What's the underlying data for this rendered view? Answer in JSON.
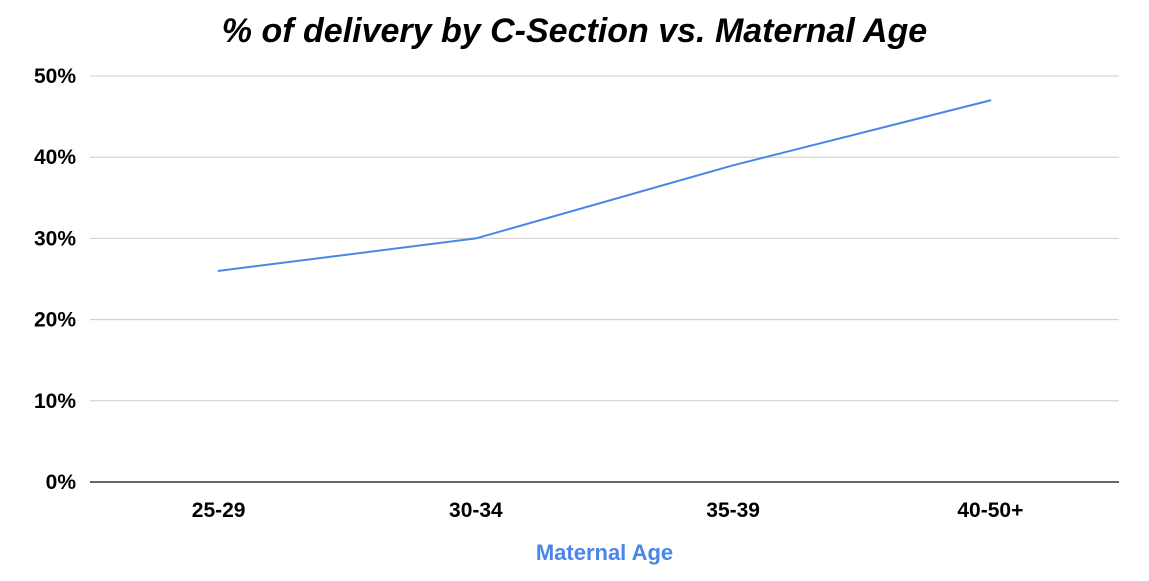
{
  "chart_data": {
    "type": "line",
    "title": "% of delivery by C-Section vs. Maternal Age",
    "xlabel": "Maternal Age",
    "ylabel": "",
    "categories": [
      "25-29",
      "30-34",
      "35-39",
      "40-50+"
    ],
    "series": [
      {
        "values": [
          26,
          30,
          39,
          47
        ]
      }
    ],
    "ylim": [
      0,
      50
    ],
    "yticks": [
      "0%",
      "10%",
      "20%",
      "30%",
      "40%",
      "50%"
    ],
    "grid": true,
    "legend": "none",
    "colors": {
      "line": "#4a86e8",
      "xlabel": "#4a86e8",
      "grid": "#cccccc",
      "axis": "#333333"
    }
  }
}
